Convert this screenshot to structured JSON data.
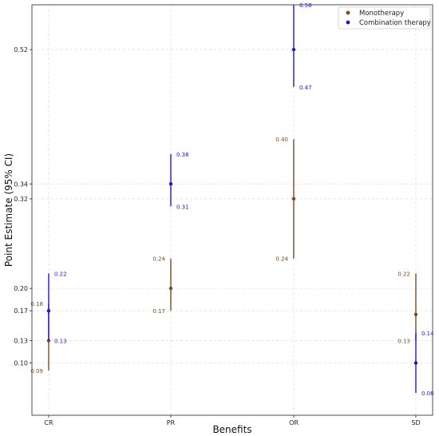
{
  "chart_data": {
    "type": "errorbar",
    "xlabel": "Benefits",
    "ylabel": "Point Estimate (95% CI)",
    "categories": [
      "CR",
      "PR",
      "OR",
      "SD"
    ],
    "yticks": [
      0.1,
      0.13,
      0.17,
      0.2,
      0.32,
      0.34,
      0.52
    ],
    "ytick_labels": [
      "0.10",
      "0.13",
      "0.17",
      "0.20",
      "0.32",
      "0.34",
      "0.52"
    ],
    "ylim": [
      0.03,
      0.58
    ],
    "grid": true,
    "legend_position": "top-right",
    "series": [
      {
        "name": "Monotherapy",
        "color": "#7a4a1e",
        "points": [
          {
            "category": "CR",
            "estimate": 0.13,
            "lower": 0.09,
            "upper": 0.18,
            "lower_label": "0.09",
            "upper_label": "0.18"
          },
          {
            "category": "PR",
            "estimate": 0.2,
            "lower": 0.17,
            "upper": 0.24,
            "lower_label": "0.17",
            "upper_label": "0.24"
          },
          {
            "category": "OR",
            "estimate": 0.32,
            "lower": 0.24,
            "upper": 0.4,
            "lower_label": "0.24",
            "upper_label": "0.40"
          },
          {
            "category": "SD",
            "estimate": 0.165,
            "lower": 0.13,
            "upper": 0.22,
            "lower_label": "0.13",
            "upper_label": "0.22"
          }
        ]
      },
      {
        "name": "Combination therapy",
        "color": "#1a18d8",
        "points": [
          {
            "category": "CR",
            "estimate": 0.17,
            "lower": 0.13,
            "upper": 0.22,
            "lower_label": "0.13",
            "upper_label": "0.22"
          },
          {
            "category": "PR",
            "estimate": 0.34,
            "lower": 0.31,
            "upper": 0.38,
            "lower_label": "0.31",
            "upper_label": "0.38"
          },
          {
            "category": "OR",
            "estimate": 0.52,
            "lower": 0.47,
            "upper": 0.58,
            "lower_label": "0.47",
            "upper_label": "0.58"
          },
          {
            "category": "SD",
            "estimate": 0.1,
            "lower": 0.06,
            "upper": 0.14,
            "lower_label": "0.06",
            "upper_label": "0.14"
          }
        ]
      }
    ]
  }
}
